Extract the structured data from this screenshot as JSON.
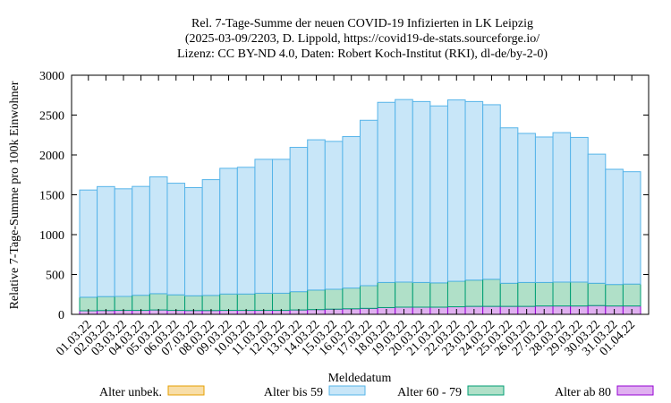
{
  "chart_data": {
    "type": "bar",
    "stacked": true,
    "title": [
      "Rel. 7-Tage-Summe der neuen COVID-19 Infizierten in LK Leipzig",
      "(2025-03-09/2203, D. Lippold, https://covid19-de-stats.sourceforge.io/",
      "Lizenz: CC BY-ND 4.0, Daten: Robert Koch-Institut (RKI), dl-de/by-2-0)"
    ],
    "xlabel": "Meldedatum",
    "ylabel": "Relative 7-Tage-Summe pro 100k Einwohner",
    "ylim": [
      0,
      3000
    ],
    "yticks": [
      0,
      500,
      1000,
      1500,
      2000,
      2500,
      3000
    ],
    "grid": false,
    "legend_position": "bottom",
    "categories": [
      "01.03.22",
      "02.03.22",
      "03.03.22",
      "04.03.22",
      "05.03.22",
      "06.03.22",
      "07.03.22",
      "08.03.22",
      "09.03.22",
      "10.03.22",
      "11.03.22",
      "12.03.22",
      "13.03.22",
      "14.03.22",
      "15.03.22",
      "16.03.22",
      "17.03.22",
      "18.03.22",
      "19.03.22",
      "20.03.22",
      "21.03.22",
      "22.03.22",
      "23.03.22",
      "24.03.22",
      "25.03.22",
      "26.03.22",
      "27.03.22",
      "28.03.22",
      "29.03.22",
      "30.03.22",
      "31.03.22",
      "01.04.22"
    ],
    "series": [
      {
        "name": "Alter ab 80",
        "fill": "#e0b0f0",
        "stroke": "#9400d3",
        "values": [
          45,
          48,
          50,
          50,
          55,
          50,
          48,
          48,
          50,
          50,
          50,
          50,
          55,
          60,
          65,
          70,
          75,
          85,
          90,
          90,
          90,
          95,
          100,
          100,
          100,
          100,
          105,
          105,
          105,
          110,
          105,
          105
        ]
      },
      {
        "name": "Alter 60 - 79",
        "fill": "#b0e0c8",
        "stroke": "#009e73",
        "values": [
          170,
          175,
          175,
          190,
          205,
          195,
          185,
          190,
          205,
          205,
          215,
          215,
          230,
          245,
          250,
          260,
          285,
          315,
          315,
          310,
          305,
          320,
          330,
          340,
          290,
          300,
          295,
          300,
          300,
          280,
          270,
          275
        ]
      },
      {
        "name": "Alter bis 59",
        "fill": "#c8e6f8",
        "stroke": "#56b4e9",
        "values": [
          1345,
          1380,
          1350,
          1365,
          1465,
          1400,
          1357,
          1452,
          1577,
          1590,
          1680,
          1680,
          1810,
          1885,
          1855,
          1900,
          2075,
          2260,
          2290,
          2270,
          2220,
          2275,
          2240,
          2190,
          1950,
          1870,
          1825,
          1875,
          1815,
          1620,
          1445,
          1410
        ]
      },
      {
        "name": "Alter unbek.",
        "fill": "#f8dea8",
        "stroke": "#e69f00",
        "values": [
          0,
          0,
          0,
          0,
          0,
          0,
          0,
          0,
          0,
          0,
          0,
          0,
          0,
          0,
          0,
          0,
          0,
          0,
          0,
          0,
          0,
          0,
          0,
          0,
          0,
          0,
          0,
          0,
          0,
          0,
          0,
          0
        ]
      }
    ],
    "legend": [
      {
        "label": "Alter unbek.",
        "fill": "#f8dea8",
        "stroke": "#e69f00"
      },
      {
        "label": "Alter bis 59",
        "fill": "#c8e6f8",
        "stroke": "#56b4e9"
      },
      {
        "label": "Alter 60 - 79",
        "fill": "#b0e0c8",
        "stroke": "#009e73"
      },
      {
        "label": "Alter ab 80",
        "fill": "#e0b0f0",
        "stroke": "#9400d3"
      }
    ]
  }
}
